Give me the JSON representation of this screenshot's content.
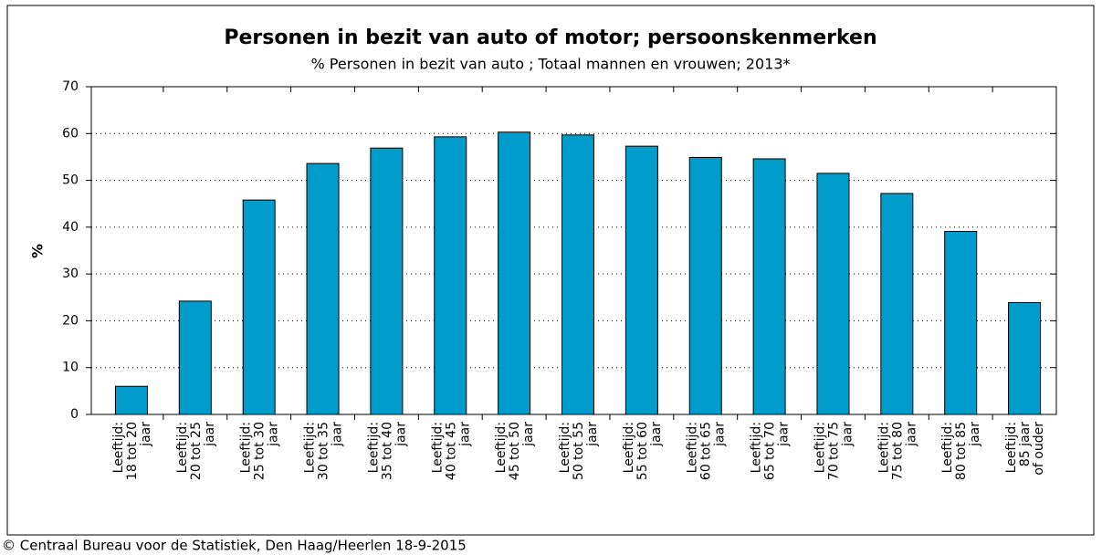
{
  "chart_data": {
    "type": "bar",
    "title": "Personen in bezit van auto of motor; persoonskenmerken",
    "subtitle": "% Personen in bezit van auto ; Totaal mannen en vrouwen; 2013*",
    "y_label": "%",
    "footer": "© Centraal Bureau voor de Statistiek, Den Haag/Heerlen 18-9-2015",
    "categories": [
      [
        "Leeftijd:",
        "18 tot 20",
        "jaar"
      ],
      [
        "Leeftijd:",
        "20 tot 25",
        "jaar"
      ],
      [
        "Leeftijd:",
        "25 tot 30",
        "jaar"
      ],
      [
        "Leeftijd:",
        "30 tot 35",
        "jaar"
      ],
      [
        "Leeftijd:",
        "35 tot 40",
        "jaar"
      ],
      [
        "Leeftijd:",
        "40 tot 45",
        "jaar"
      ],
      [
        "Leeftijd:",
        "45 tot 50",
        "jaar"
      ],
      [
        "Leeftijd:",
        "50 tot 55",
        "jaar"
      ],
      [
        "Leeftijd:",
        "55 tot 60",
        "jaar"
      ],
      [
        "Leeftijd:",
        "60 tot 65",
        "jaar"
      ],
      [
        "Leeftijd:",
        "65 tot 70",
        "jaar"
      ],
      [
        "Leeftijd:",
        "70 tot 75",
        "jaar"
      ],
      [
        "Leeftijd:",
        "75 tot 80",
        "jaar"
      ],
      [
        "Leeftijd:",
        "80 tot 85",
        "jaar"
      ],
      [
        "Leeftijd:",
        "85 jaar",
        "of ouder"
      ]
    ],
    "values": [
      6,
      24.2,
      45.8,
      53.6,
      56.9,
      59.3,
      60.3,
      59.7,
      57.3,
      54.9,
      54.6,
      51.5,
      47.2,
      39.1,
      23.9
    ],
    "color": "#009ccc",
    "ylim": [
      0,
      70
    ],
    "yticks": [
      0,
      10,
      20,
      30,
      40,
      50,
      60,
      70
    ],
    "grid": true
  }
}
